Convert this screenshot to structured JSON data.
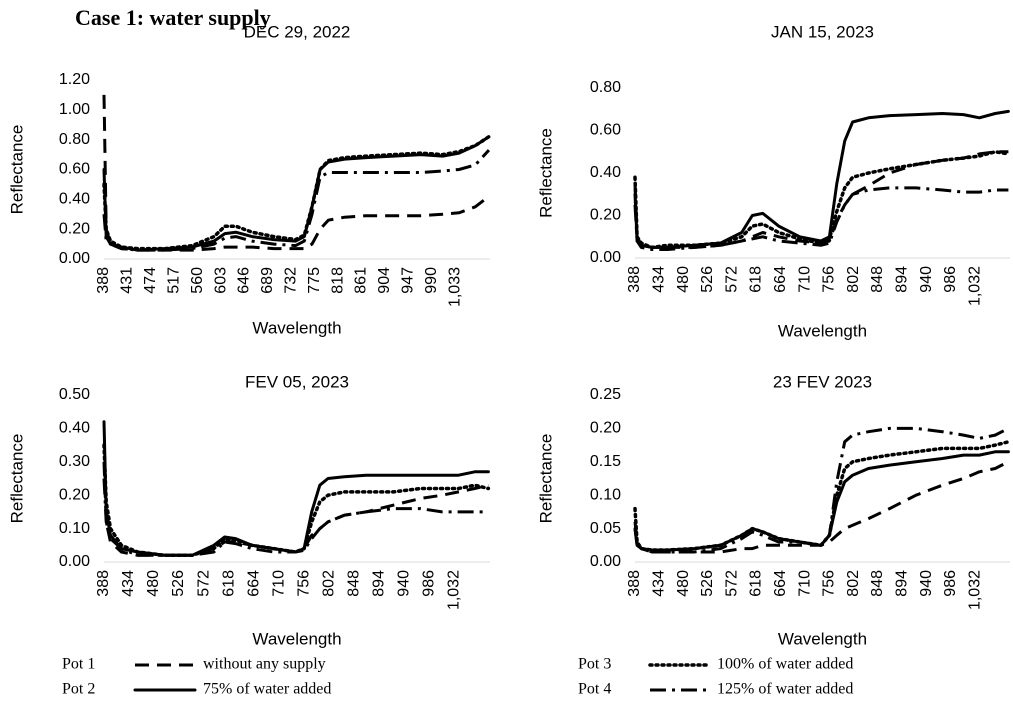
{
  "title": "Case 1: water supply",
  "legend": [
    {
      "name": "Pot 1",
      "description": "without any supply",
      "style": "dashed"
    },
    {
      "name": "Pot 2",
      "description": "75% of water added",
      "style": "solid"
    },
    {
      "name": "Pot 3",
      "description": "100% of water added",
      "style": "dotted"
    },
    {
      "name": "Pot 4",
      "description": "125% of water added",
      "style": "dash-dot"
    }
  ],
  "color": "#000000",
  "chart_data": [
    {
      "type": "line",
      "title": "DEC 29, 2022",
      "x_label": "Wavelength",
      "y_label": "Reflectance",
      "x": [
        388,
        392,
        400,
        420,
        450,
        500,
        550,
        590,
        610,
        630,
        660,
        700,
        740,
        756,
        770,
        785,
        800,
        830,
        870,
        920,
        970,
        1010,
        1040,
        1070,
        1095
      ],
      "xlim": [
        388,
        1097
      ],
      "xticks": [
        388,
        431,
        474,
        517,
        560,
        603,
        646,
        689,
        732,
        775,
        818,
        861,
        904,
        947,
        990,
        {
          "value": 1033,
          "label": "1,033"
        }
      ],
      "ylim": [
        0,
        1.2
      ],
      "yticks": [
        {
          "value": 0,
          "label": "0.00"
        },
        {
          "value": 0.2,
          "label": "0.20"
        },
        {
          "value": 0.4,
          "label": "0.40"
        },
        {
          "value": 0.6,
          "label": "0.60"
        },
        {
          "value": 0.8,
          "label": "0.80"
        },
        {
          "value": 1.0,
          "label": "1.00"
        },
        {
          "value": 1.2,
          "label": "1.20"
        }
      ],
      "series": [
        {
          "values": [
            1.1,
            0.2,
            0.1,
            0.07,
            0.06,
            0.06,
            0.06,
            0.07,
            0.08,
            0.08,
            0.08,
            0.07,
            0.07,
            0.07,
            0.1,
            0.2,
            0.26,
            0.28,
            0.29,
            0.29,
            0.29,
            0.3,
            0.31,
            0.35,
            0.42
          ]
        },
        {
          "values": [
            0.6,
            0.15,
            0.1,
            0.08,
            0.06,
            0.07,
            0.08,
            0.12,
            0.17,
            0.18,
            0.15,
            0.13,
            0.12,
            0.15,
            0.35,
            0.6,
            0.65,
            0.67,
            0.68,
            0.69,
            0.7,
            0.69,
            0.71,
            0.76,
            0.82
          ]
        },
        {
          "values": [
            0.5,
            0.2,
            0.12,
            0.08,
            0.07,
            0.07,
            0.09,
            0.15,
            0.22,
            0.22,
            0.18,
            0.15,
            0.13,
            0.16,
            0.35,
            0.6,
            0.66,
            0.68,
            0.69,
            0.7,
            0.71,
            0.7,
            0.72,
            0.76,
            0.82
          ]
        },
        {
          "values": [
            0.3,
            0.12,
            0.1,
            0.07,
            0.06,
            0.06,
            0.07,
            0.1,
            0.14,
            0.15,
            0.12,
            0.1,
            0.09,
            0.12,
            0.3,
            0.55,
            0.58,
            0.58,
            0.58,
            0.58,
            0.58,
            0.59,
            0.6,
            0.63,
            0.73
          ]
        }
      ]
    },
    {
      "type": "line",
      "title": "JAN 15, 2023",
      "x_label": "Wavelength",
      "y_label": "Reflectance",
      "x": [
        388,
        392,
        400,
        420,
        450,
        500,
        550,
        590,
        610,
        630,
        660,
        700,
        740,
        756,
        770,
        785,
        800,
        830,
        870,
        920,
        970,
        1010,
        1040,
        1070,
        1095
      ],
      "xlim": [
        388,
        1098
      ],
      "xticks": [
        388,
        434,
        480,
        526,
        572,
        618,
        664,
        710,
        756,
        802,
        848,
        894,
        940,
        986,
        {
          "value": 1032,
          "label": "1,032"
        }
      ],
      "ylim": [
        0,
        0.8
      ],
      "yticks": [
        {
          "value": 0,
          "label": "0.00"
        },
        {
          "value": 0.2,
          "label": "0.20"
        },
        {
          "value": 0.4,
          "label": "0.40"
        },
        {
          "value": 0.6,
          "label": "0.60"
        },
        {
          "value": 0.8,
          "label": "0.80"
        }
      ],
      "series": [
        {
          "values": [
            0.35,
            0.1,
            0.06,
            0.05,
            0.05,
            0.05,
            0.06,
            0.08,
            0.1,
            0.12,
            0.1,
            0.08,
            0.07,
            0.08,
            0.18,
            0.25,
            0.3,
            0.34,
            0.4,
            0.44,
            0.46,
            0.47,
            0.49,
            0.5,
            0.5
          ]
        },
        {
          "values": [
            0.3,
            0.08,
            0.06,
            0.05,
            0.05,
            0.06,
            0.07,
            0.12,
            0.2,
            0.21,
            0.15,
            0.1,
            0.08,
            0.1,
            0.35,
            0.55,
            0.64,
            0.66,
            0.67,
            0.675,
            0.68,
            0.675,
            0.66,
            0.68,
            0.69
          ]
        },
        {
          "values": [
            0.38,
            0.1,
            0.07,
            0.05,
            0.06,
            0.06,
            0.07,
            0.1,
            0.15,
            0.16,
            0.12,
            0.09,
            0.07,
            0.09,
            0.22,
            0.33,
            0.38,
            0.4,
            0.42,
            0.44,
            0.46,
            0.47,
            0.48,
            0.5,
            0.49
          ]
        },
        {
          "values": [
            0.25,
            0.08,
            0.05,
            0.04,
            0.04,
            0.05,
            0.06,
            0.08,
            0.09,
            0.1,
            0.08,
            0.07,
            0.06,
            0.07,
            0.17,
            0.25,
            0.3,
            0.32,
            0.33,
            0.33,
            0.32,
            0.31,
            0.31,
            0.32,
            0.32
          ]
        }
      ]
    },
    {
      "type": "line",
      "title": "FEV 05, 2023",
      "x_label": "Wavelength",
      "y_label": "Reflectance",
      "x": [
        388,
        392,
        400,
        420,
        450,
        500,
        550,
        590,
        610,
        630,
        660,
        700,
        740,
        756,
        770,
        785,
        800,
        830,
        870,
        920,
        970,
        1010,
        1040,
        1070,
        1095
      ],
      "xlim": [
        388,
        1098
      ],
      "xticks": [
        388,
        434,
        480,
        526,
        572,
        618,
        664,
        710,
        756,
        802,
        848,
        894,
        940,
        986,
        {
          "value": 1032,
          "label": "1,032"
        }
      ],
      "ylim": [
        0,
        0.5
      ],
      "yticks": [
        {
          "value": 0,
          "label": "0.00"
        },
        {
          "value": 0.1,
          "label": "0.10"
        },
        {
          "value": 0.2,
          "label": "0.20"
        },
        {
          "value": 0.3,
          "label": "0.30"
        },
        {
          "value": 0.4,
          "label": "0.40"
        },
        {
          "value": 0.5,
          "label": "0.50"
        }
      ],
      "series": [
        {
          "values": [
            0.3,
            0.12,
            0.06,
            0.03,
            0.02,
            0.02,
            0.02,
            0.04,
            0.06,
            0.06,
            0.05,
            0.04,
            0.03,
            0.04,
            0.08,
            0.1,
            0.12,
            0.14,
            0.15,
            0.17,
            0.19,
            0.2,
            0.21,
            0.22,
            0.23
          ]
        },
        {
          "values": [
            0.42,
            0.15,
            0.08,
            0.04,
            0.03,
            0.02,
            0.02,
            0.05,
            0.075,
            0.07,
            0.05,
            0.04,
            0.03,
            0.04,
            0.15,
            0.23,
            0.25,
            0.255,
            0.26,
            0.26,
            0.26,
            0.26,
            0.26,
            0.27,
            0.27
          ]
        },
        {
          "values": [
            0.35,
            0.18,
            0.1,
            0.05,
            0.03,
            0.02,
            0.02,
            0.04,
            0.07,
            0.065,
            0.05,
            0.04,
            0.03,
            0.04,
            0.12,
            0.18,
            0.2,
            0.21,
            0.21,
            0.21,
            0.22,
            0.22,
            0.22,
            0.23,
            0.22
          ]
        },
        {
          "values": [
            0.25,
            0.12,
            0.07,
            0.04,
            0.02,
            0.02,
            0.02,
            0.03,
            0.06,
            0.055,
            0.04,
            0.03,
            0.03,
            0.035,
            0.07,
            0.1,
            0.12,
            0.14,
            0.15,
            0.16,
            0.16,
            0.15,
            0.15,
            0.15,
            0.15
          ]
        }
      ]
    },
    {
      "type": "line",
      "title": "23 FEV 2023",
      "x_label": "Wavelength",
      "y_label": "Reflectance",
      "x": [
        388,
        392,
        400,
        420,
        450,
        500,
        550,
        590,
        610,
        630,
        660,
        700,
        740,
        756,
        770,
        785,
        800,
        830,
        870,
        920,
        970,
        1010,
        1040,
        1070,
        1095
      ],
      "xlim": [
        388,
        1098
      ],
      "xticks": [
        388,
        434,
        480,
        526,
        572,
        618,
        664,
        710,
        756,
        802,
        848,
        894,
        940,
        986,
        {
          "value": 1032,
          "label": "1,032"
        }
      ],
      "ylim": [
        0,
        0.25
      ],
      "yticks": [
        {
          "value": 0,
          "label": "0.00"
        },
        {
          "value": 0.05,
          "label": "0.05"
        },
        {
          "value": 0.1,
          "label": "0.10"
        },
        {
          "value": 0.15,
          "label": "0.15"
        },
        {
          "value": 0.2,
          "label": "0.20"
        },
        {
          "value": 0.25,
          "label": "0.25"
        }
      ],
      "series": [
        {
          "values": [
            0.06,
            0.03,
            0.02,
            0.015,
            0.015,
            0.015,
            0.015,
            0.02,
            0.02,
            0.025,
            0.025,
            0.025,
            0.025,
            0.03,
            0.04,
            0.05,
            0.055,
            0.065,
            0.08,
            0.1,
            0.115,
            0.125,
            0.135,
            0.14,
            0.15
          ]
        },
        {
          "values": [
            0.05,
            0.025,
            0.02,
            0.018,
            0.018,
            0.02,
            0.025,
            0.04,
            0.05,
            0.045,
            0.035,
            0.03,
            0.025,
            0.04,
            0.09,
            0.12,
            0.13,
            0.14,
            0.145,
            0.15,
            0.155,
            0.16,
            0.16,
            0.165,
            0.165
          ]
        },
        {
          "values": [
            0.08,
            0.03,
            0.02,
            0.018,
            0.018,
            0.02,
            0.025,
            0.04,
            0.05,
            0.045,
            0.035,
            0.03,
            0.025,
            0.04,
            0.1,
            0.14,
            0.15,
            0.155,
            0.16,
            0.165,
            0.17,
            0.17,
            0.17,
            0.175,
            0.18
          ]
        },
        {
          "values": [
            0.05,
            0.025,
            0.02,
            0.015,
            0.015,
            0.015,
            0.02,
            0.035,
            0.045,
            0.04,
            0.03,
            0.03,
            0.025,
            0.04,
            0.12,
            0.18,
            0.19,
            0.195,
            0.2,
            0.2,
            0.195,
            0.19,
            0.185,
            0.19,
            0.2
          ]
        }
      ]
    }
  ]
}
